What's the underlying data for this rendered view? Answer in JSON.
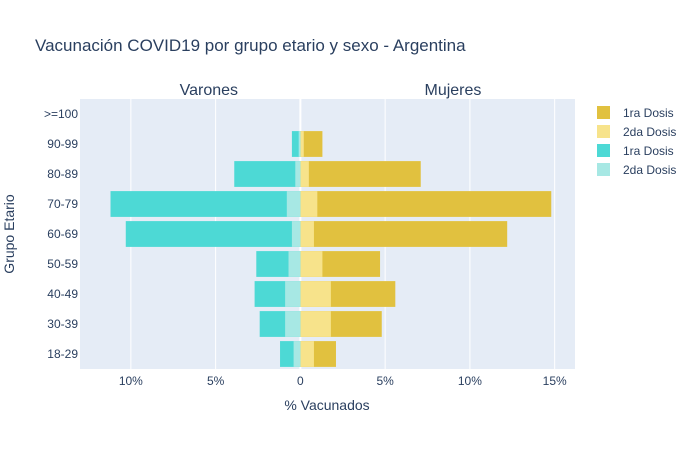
{
  "chart_data": {
    "type": "bar",
    "orientation": "horizontal",
    "barmode": "overlay",
    "title": "Vacunación COVID19 por grupo etario y sexo - Argentina",
    "xlabel": "% Vacunados",
    "ylabel": "Grupo Etario",
    "xlim": [
      -13,
      16.2
    ],
    "x_ticks": [
      {
        "value": -10,
        "label": "10%"
      },
      {
        "value": -5,
        "label": "5%"
      },
      {
        "value": 0,
        "label": "0"
      },
      {
        "value": 5,
        "label": "5%"
      },
      {
        "value": 10,
        "label": "10%"
      },
      {
        "value": 15,
        "label": "15%"
      }
    ],
    "categories": [
      "18-29",
      "30-39",
      "40-49",
      "50-59",
      "60-69",
      "70-79",
      "80-89",
      "90-99",
      ">=100"
    ],
    "annotations": [
      {
        "text": "Varones",
        "x": -5.4
      },
      {
        "text": "Mujeres",
        "x": 9.0
      }
    ],
    "series": [
      {
        "name": "1ra Dosis",
        "color": "#e1c13f",
        "values": [
          2.1,
          4.8,
          5.6,
          4.7,
          12.2,
          14.8,
          7.1,
          1.3,
          0.0
        ]
      },
      {
        "name": "2da Dosis",
        "color": "#f7e38b",
        "values": [
          0.8,
          1.8,
          1.8,
          1.3,
          0.8,
          1.0,
          0.5,
          0.2,
          0.0
        ]
      },
      {
        "name": "1ra Dosis",
        "color": "#4dd9d5",
        "values": [
          -1.2,
          -2.4,
          -2.7,
          -2.6,
          -10.3,
          -11.2,
          -3.9,
          -0.5,
          0.0
        ]
      },
      {
        "name": "2da Dosis",
        "color": "#a7e8e4",
        "values": [
          -0.4,
          -0.9,
          -0.9,
          -0.7,
          -0.5,
          -0.8,
          -0.3,
          -0.1,
          0.0
        ]
      }
    ],
    "legend_position": "top-right",
    "grid": true
  }
}
